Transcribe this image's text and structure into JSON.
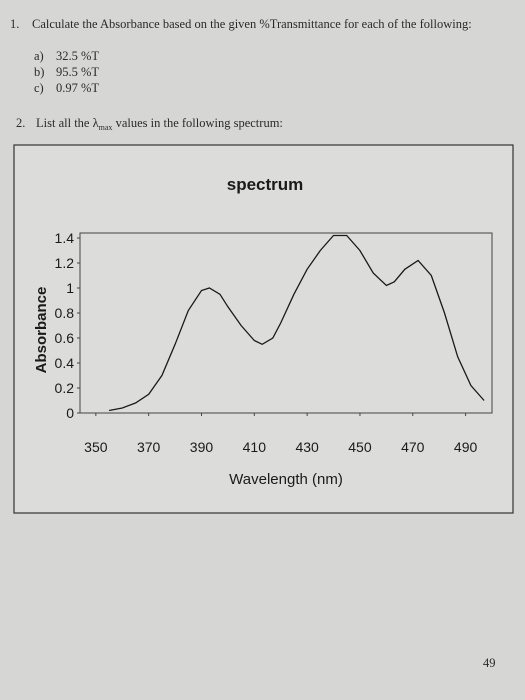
{
  "questions": [
    {
      "number": "1.",
      "text": "Calculate the Absorbance based on the given %Transmittance for each of the following:",
      "items": [
        {
          "label": "a)",
          "text": "32.5 %T"
        },
        {
          "label": "b)",
          "text": "95.5 %T"
        },
        {
          "label": "c)",
          "text": "0.97 %T"
        }
      ]
    },
    {
      "number": "2.",
      "text_before": "List all the λ",
      "subscript": "max",
      "text_after": " values in the following spectrum:"
    }
  ],
  "chart_data": {
    "type": "line",
    "title": "spectrum",
    "x_label": "Wavelength (nm)",
    "y_label": "Absorbance",
    "x": [
      355,
      360,
      365,
      370,
      375,
      380,
      385,
      390,
      393,
      397,
      400,
      405,
      410,
      413,
      417,
      420,
      425,
      430,
      435,
      440,
      445,
      450,
      455,
      460,
      463,
      467,
      472,
      477,
      482,
      487,
      492,
      497
    ],
    "series": [
      {
        "name": "Absorbance",
        "color": "#1a1a1a",
        "values": [
          0.02,
          0.04,
          0.08,
          0.15,
          0.3,
          0.55,
          0.82,
          0.98,
          1.0,
          0.95,
          0.85,
          0.7,
          0.58,
          0.55,
          0.6,
          0.72,
          0.95,
          1.15,
          1.3,
          1.42,
          1.42,
          1.3,
          1.12,
          1.02,
          1.05,
          1.15,
          1.22,
          1.1,
          0.8,
          0.45,
          0.22,
          0.1
        ]
      }
    ],
    "xlim": [
      344,
      500
    ],
    "ylim": [
      0,
      1.44
    ],
    "xticks": [
      350,
      370,
      390,
      410,
      430,
      450,
      470,
      490
    ],
    "yticks": [
      0,
      0.2,
      0.4,
      0.6,
      0.8,
      1,
      1.2,
      1.4
    ]
  },
  "page_number": "49"
}
